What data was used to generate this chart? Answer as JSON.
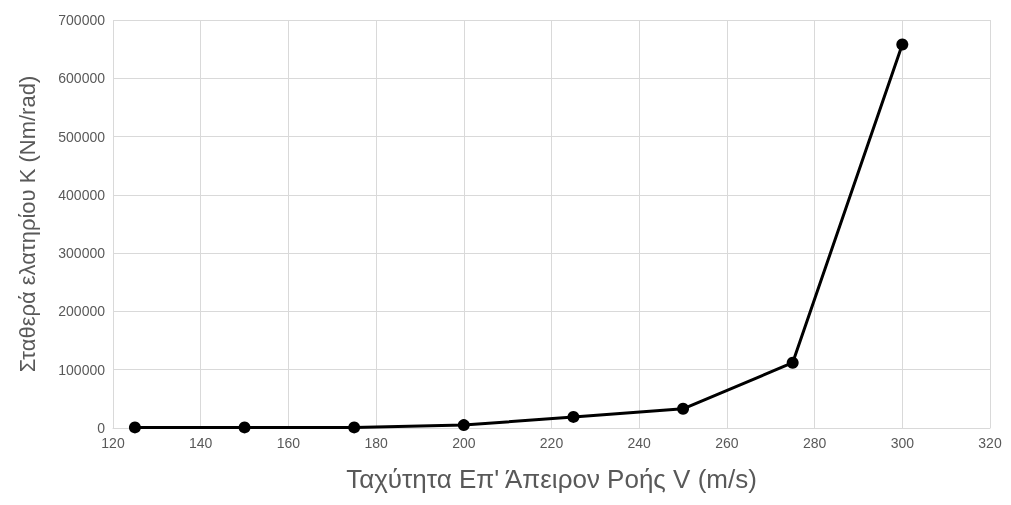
{
  "chart_data": {
    "type": "line",
    "xlabel": "Ταχύτητα Επ' Άπειρον Ροής V (m/s)",
    "ylabel": "Σταθερά ελατηρίου K (Nm/rad)",
    "x": [
      125,
      150,
      175,
      200,
      225,
      250,
      275,
      300
    ],
    "series": [
      {
        "color": "#000000",
        "values": [
          1000,
          1000,
          1000,
          5000,
          19000,
          33000,
          112000,
          658000
        ]
      }
    ],
    "xlim": [
      120,
      320
    ],
    "xticks": [
      120,
      140,
      160,
      180,
      200,
      220,
      240,
      260,
      280,
      300,
      320
    ],
    "ylim": [
      0,
      700000
    ],
    "yticks": [
      0,
      100000,
      200000,
      300000,
      400000,
      500000,
      600000,
      700000
    ],
    "grid": true,
    "marker": "circle",
    "line_style": "solid"
  }
}
